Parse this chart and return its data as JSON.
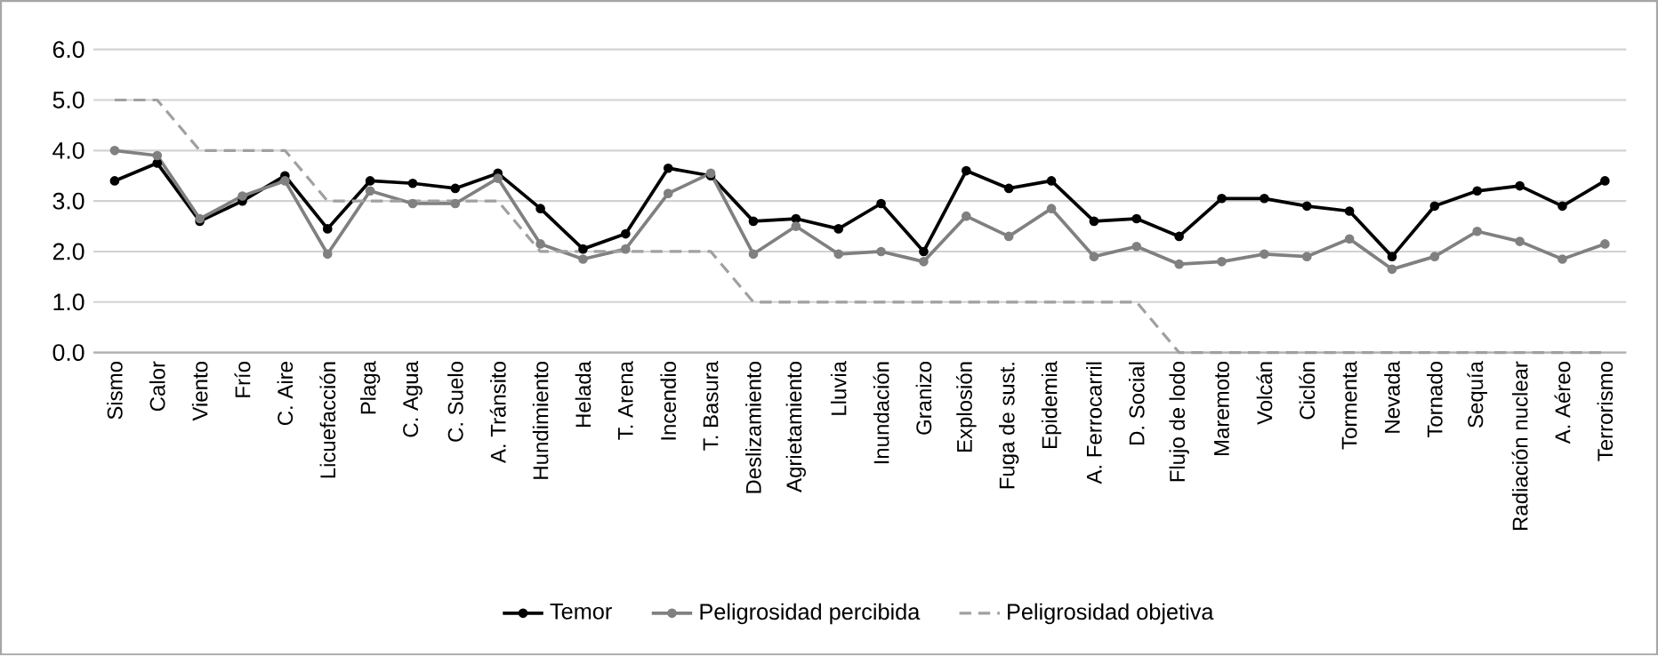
{
  "chart_data": {
    "type": "line",
    "categories": [
      "Sismo",
      "Calor",
      "Viento",
      "Frío",
      "C. Aire",
      "Licuefacción",
      "Plaga",
      "C. Agua",
      "C. Suelo",
      "A. Tránsito",
      "Hundimiento",
      "Helada",
      "T. Arena",
      "Incendio",
      "T. Basura",
      "Deslizamiento",
      "Agrietamiento",
      "Lluvia",
      "Inundación",
      "Granizo",
      "Explosión",
      "Fuga de sust.",
      "Epidemia",
      "A. Ferrocarril",
      "D. Social",
      "Flujo de lodo",
      "Maremoto",
      "Volcán",
      "Ciclón",
      "Tormenta",
      "Nevada",
      "Tornado",
      "Sequía",
      "Radiación nuclear",
      "A. Aéreo",
      "Terrorismo"
    ],
    "series": [
      {
        "name": "Temor",
        "color": "#000000",
        "marker": "circle",
        "line_style": "solid",
        "values": [
          3.4,
          3.75,
          2.6,
          3.0,
          3.5,
          2.45,
          3.4,
          3.35,
          3.25,
          3.55,
          2.85,
          2.05,
          2.35,
          3.65,
          3.5,
          2.6,
          2.65,
          2.45,
          2.95,
          2.0,
          3.6,
          3.25,
          3.4,
          2.6,
          2.65,
          2.3,
          3.05,
          3.05,
          2.9,
          2.8,
          1.9,
          2.9,
          3.2,
          3.3,
          2.9,
          3.4
        ]
      },
      {
        "name": "Peligrosidad percibida",
        "color": "#808080",
        "marker": "circle",
        "line_style": "solid",
        "values": [
          4.0,
          3.9,
          2.65,
          3.1,
          3.4,
          1.95,
          3.2,
          2.95,
          2.95,
          3.45,
          2.15,
          1.85,
          2.05,
          3.15,
          3.55,
          1.95,
          2.5,
          1.95,
          2.0,
          1.8,
          2.7,
          2.3,
          2.85,
          1.9,
          2.1,
          1.75,
          1.8,
          1.95,
          1.9,
          2.25,
          1.65,
          1.9,
          2.4,
          2.2,
          1.85,
          2.15
        ]
      },
      {
        "name": "Peligrosidad objetiva",
        "color": "#a0a0a0",
        "marker": "none",
        "line_style": "dashed",
        "values": [
          5,
          5,
          4,
          4,
          4,
          3,
          3,
          3,
          3,
          3,
          2,
          2,
          2,
          2,
          2,
          1,
          1,
          1,
          1,
          1,
          1,
          1,
          1,
          1,
          1,
          0,
          0,
          0,
          0,
          0,
          0,
          0,
          0,
          0,
          0,
          0
        ]
      }
    ],
    "ylim": [
      0,
      6
    ],
    "yticks": [
      {
        "value": 0,
        "label": "0.0"
      },
      {
        "value": 1,
        "label": "1.0"
      },
      {
        "value": 2,
        "label": "2.0"
      },
      {
        "value": 3,
        "label": "3.0"
      },
      {
        "value": 4,
        "label": "4.0"
      },
      {
        "value": 5,
        "label": "5.0"
      },
      {
        "value": 6,
        "label": "6.0"
      }
    ],
    "grid": "y",
    "legend": "bottom"
  }
}
